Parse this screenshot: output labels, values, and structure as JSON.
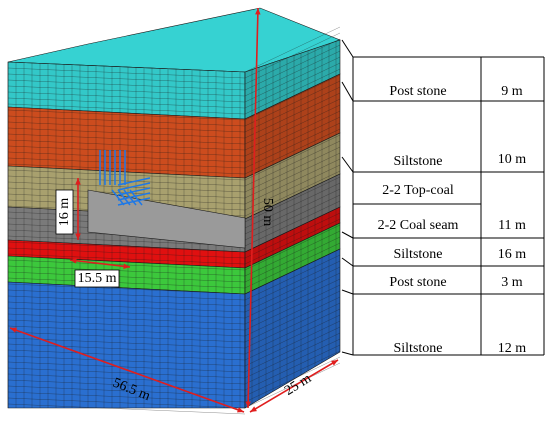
{
  "diagram": {
    "layers": [
      {
        "name": "Post stone",
        "thickness": "9 m",
        "color": "#33c8c8"
      },
      {
        "name": "Siltstone",
        "thickness": "10 m",
        "color": "#cc4c1e"
      },
      {
        "name": "2-2 Top-coal",
        "thickness": "",
        "color": "#a8a06e"
      },
      {
        "name": "2-2 Coal seam",
        "thickness": "11 m",
        "color": "#7a7a7a"
      },
      {
        "name": "Siltstone",
        "thickness": "16 m",
        "color": "#e01010"
      },
      {
        "name": "Post stone",
        "thickness": "3 m",
        "color": "#3cc83c"
      },
      {
        "name": "Siltstone",
        "thickness": "12 m",
        "color": "#2a6fd0"
      }
    ],
    "dimensions": {
      "height": "50 m",
      "length": "56.5 m",
      "width": "25 m",
      "roadway_length": "15.5 m",
      "roadway_height": "16 m"
    },
    "colors": {
      "grid_line": "#1a1a1a",
      "dimension_arrow": "#e01e1e",
      "roadway_arrow": "#1e78e6"
    }
  }
}
